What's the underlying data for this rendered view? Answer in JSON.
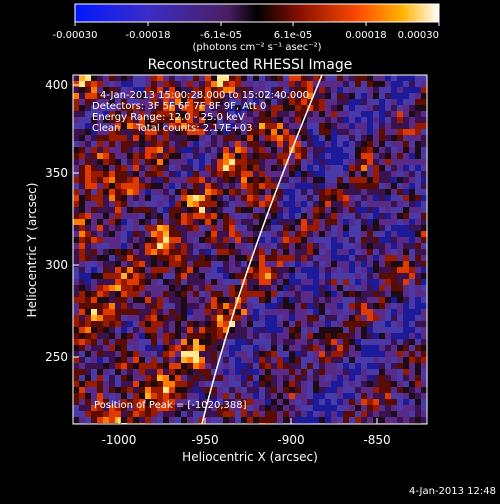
{
  "colorbar": {
    "ticks": [
      "-0.00030",
      "-0.00018",
      "-6.1e-05",
      "6.1e-05",
      "0.00018",
      "0.00030"
    ],
    "units": "(photons cm⁻² s⁻¹ asec⁻²)"
  },
  "plot": {
    "title": "Reconstructed RHESSI Image",
    "xlabel": "Heliocentric X (arcsec)",
    "ylabel": "Heliocentric Y (arcsec)",
    "x_ticks": [
      "-1000",
      "-950",
      "-900",
      "-850"
    ],
    "y_ticks": [
      "400",
      "350",
      "300",
      "250"
    ],
    "xlim": [
      -1020,
      -825
    ],
    "ylim": [
      210,
      405
    ]
  },
  "annotations": {
    "time_range": "4-Jan-2013 15:00:28.000 to 15:02:40.000",
    "detectors": "Detectors: 3F 5F 6F 7F 8F 9F, Att 0",
    "energy": "Energy Range: 12.0 - 25.0 keV",
    "method": "Clean     Total counts: 2.17E+03",
    "peak": "Position of Peak = [-1020,388]"
  },
  "footer": {
    "timestamp": "4-Jan-2013 12:48"
  },
  "colors": {
    "background": "#000000",
    "text": "#ffffff"
  }
}
